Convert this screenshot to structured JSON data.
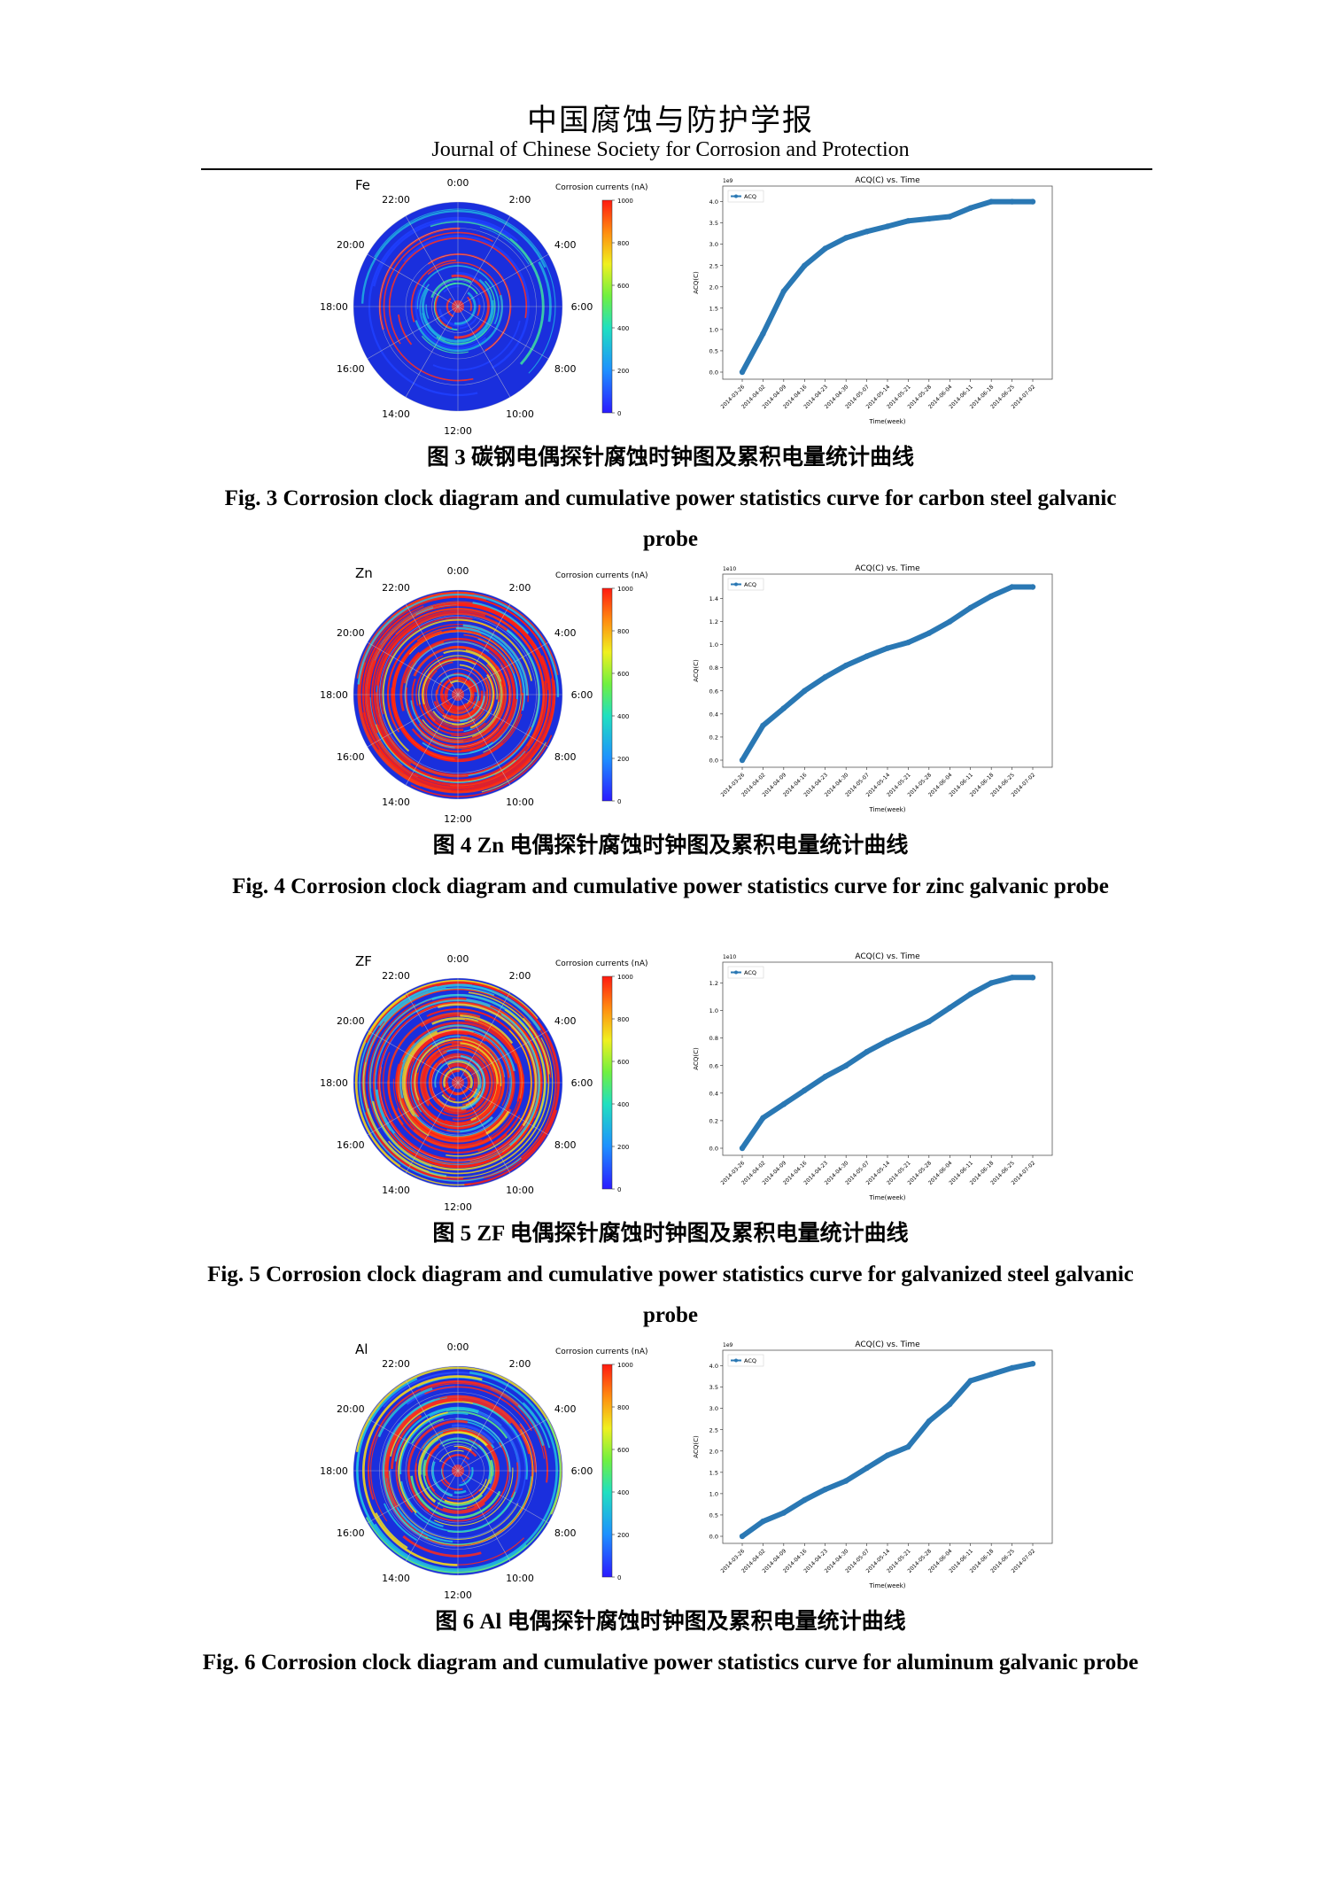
{
  "header": {
    "journal_cn": "中国腐蚀与防护学报",
    "journal_en": "Journal of Chinese Society for Corrosion and Protection"
  },
  "common": {
    "clock_hours": [
      "0:00",
      "2:00",
      "4:00",
      "6:00",
      "8:00",
      "10:00",
      "12:00",
      "14:00",
      "16:00",
      "18:00",
      "20:00",
      "22:00"
    ],
    "colorbar_label": "Corrosion currents (nA)",
    "colorbar_ticks": [
      "1000",
      "800",
      "600",
      "400",
      "200",
      "0"
    ],
    "chart_title": "ACQ(C) vs. Time",
    "legend_label": "ACQ",
    "xlabel": "Time(week)",
    "ylabel": "ACQ(C)",
    "x_dates": [
      "2014-03-26",
      "2014-04-02",
      "2014-04-09",
      "2014-04-16",
      "2014-04-23",
      "2014-04-30",
      "2014-05-07",
      "2014-05-14",
      "2014-05-21",
      "2014-05-28",
      "2014-06-04",
      "2014-06-11",
      "2014-06-18",
      "2014-06-25",
      "2014-07-02"
    ],
    "line_color": "#2a78b4",
    "clock_base_color": "#1a2fdd"
  },
  "figures": [
    {
      "probe_label": "Fe",
      "clock_intensity": "low",
      "caption_cn": "图 3  碳钢电偶探针腐蚀时钟图及累积电量统计曲线",
      "caption_en": "Fig. 3 Corrosion clock diagram and cumulative power statistics curve for carbon steel galvanic probe",
      "chart_data": {
        "type": "line",
        "title": "ACQ(C) vs. Time",
        "xlabel": "Time(week)",
        "ylabel": "ACQ(C)",
        "scale_label": "1e9",
        "yticks": [
          "0.0",
          "0.5",
          "1.0",
          "1.5",
          "2.0",
          "2.5",
          "3.0",
          "3.5",
          "4.0"
        ],
        "ylim": [
          0,
          4.2
        ],
        "x": [
          "2014-03-26",
          "2014-04-02",
          "2014-04-09",
          "2014-04-16",
          "2014-04-23",
          "2014-04-30",
          "2014-05-07",
          "2014-05-14",
          "2014-05-21",
          "2014-05-28",
          "2014-06-04",
          "2014-06-11",
          "2014-06-18",
          "2014-06-25",
          "2014-07-02"
        ],
        "series": [
          {
            "name": "ACQ",
            "values": [
              0.0,
              0.9,
              1.9,
              2.5,
              2.9,
              3.15,
              3.3,
              3.42,
              3.55,
              3.6,
              3.65,
              3.85,
              4.0,
              4.0,
              4.0
            ]
          }
        ]
      }
    },
    {
      "probe_label": "Zn",
      "clock_intensity": "high",
      "caption_cn": "图 4 Zn 电偶探针腐蚀时钟图及累积电量统计曲线",
      "caption_en": "Fig. 4 Corrosion clock diagram and cumulative power statistics curve for zinc galvanic probe",
      "chart_data": {
        "type": "line",
        "title": "ACQ(C) vs. Time",
        "xlabel": "Time(week)",
        "ylabel": "ACQ(C)",
        "scale_label": "1e10",
        "yticks": [
          "0.0",
          "0.2",
          "0.4",
          "0.6",
          "0.8",
          "1.0",
          "1.2",
          "1.4"
        ],
        "ylim": [
          0,
          1.55
        ],
        "x": [
          "2014-03-26",
          "2014-04-02",
          "2014-04-09",
          "2014-04-16",
          "2014-04-23",
          "2014-04-30",
          "2014-05-07",
          "2014-05-14",
          "2014-05-21",
          "2014-05-28",
          "2014-06-04",
          "2014-06-11",
          "2014-06-18",
          "2014-06-25",
          "2014-07-02"
        ],
        "series": [
          {
            "name": "ACQ",
            "values": [
              0.0,
              0.3,
              0.45,
              0.6,
              0.72,
              0.82,
              0.9,
              0.97,
              1.02,
              1.1,
              1.2,
              1.32,
              1.42,
              1.5,
              1.5
            ]
          }
        ]
      }
    },
    {
      "probe_label": "ZF",
      "clock_intensity": "high",
      "caption_cn": "图 5 ZF 电偶探针腐蚀时钟图及累积电量统计曲线",
      "caption_en": "Fig. 5 Corrosion clock diagram and cumulative power statistics curve for galvanized steel galvanic probe",
      "chart_data": {
        "type": "line",
        "title": "ACQ(C) vs. Time",
        "xlabel": "Time(week)",
        "ylabel": "ACQ(C)",
        "scale_label": "1e10",
        "yticks": [
          "0.0",
          "0.2",
          "0.4",
          "0.6",
          "0.8",
          "1.0",
          "1.2"
        ],
        "ylim": [
          0,
          1.3
        ],
        "x": [
          "2014-03-26",
          "2014-04-02",
          "2014-04-09",
          "2014-04-16",
          "2014-04-23",
          "2014-04-30",
          "2014-05-07",
          "2014-05-14",
          "2014-05-21",
          "2014-05-28",
          "2014-06-04",
          "2014-06-11",
          "2014-06-18",
          "2014-06-25",
          "2014-07-02"
        ],
        "series": [
          {
            "name": "ACQ",
            "values": [
              0.0,
              0.22,
              0.32,
              0.42,
              0.52,
              0.6,
              0.7,
              0.78,
              0.85,
              0.92,
              1.02,
              1.12,
              1.2,
              1.24,
              1.24
            ]
          }
        ]
      }
    },
    {
      "probe_label": "Al",
      "clock_intensity": "medium",
      "caption_cn": "图 6 Al 电偶探针腐蚀时钟图及累积电量统计曲线",
      "caption_en": "Fig. 6 Corrosion clock diagram and cumulative power statistics curve for aluminum galvanic probe",
      "chart_data": {
        "type": "line",
        "title": "ACQ(C) vs. Time",
        "xlabel": "Time(week)",
        "ylabel": "ACQ(C)",
        "scale_label": "1e9",
        "yticks": [
          "0.0",
          "0.5",
          "1.0",
          "1.5",
          "2.0",
          "2.5",
          "3.0",
          "3.5",
          "4.0"
        ],
        "ylim": [
          0,
          4.2
        ],
        "x": [
          "2014-03-26",
          "2014-04-02",
          "2014-04-09",
          "2014-04-16",
          "2014-04-23",
          "2014-04-30",
          "2014-05-07",
          "2014-05-14",
          "2014-05-21",
          "2014-05-28",
          "2014-06-04",
          "2014-06-11",
          "2014-06-18",
          "2014-06-25",
          "2014-07-02"
        ],
        "series": [
          {
            "name": "ACQ",
            "values": [
              0.0,
              0.35,
              0.55,
              0.85,
              1.1,
              1.3,
              1.6,
              1.9,
              2.1,
              2.7,
              3.1,
              3.65,
              3.8,
              3.95,
              4.05
            ]
          }
        ]
      }
    }
  ]
}
